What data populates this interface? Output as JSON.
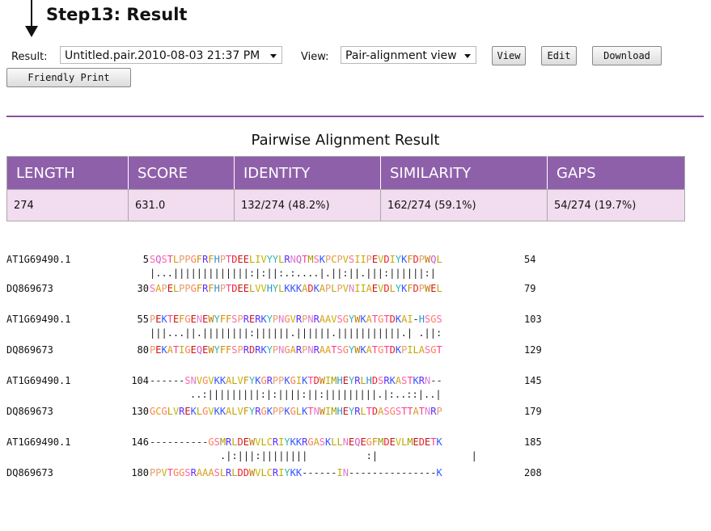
{
  "step": {
    "title": "Step13: Result"
  },
  "controls": {
    "result_label": "Result:",
    "result_value": "Untitled.pair.2010-08-03 21:37 PM",
    "view_label": "View:",
    "view_value": "Pair-alignment view",
    "view_button": "View",
    "edit_button": "Edit",
    "download_button": "Download",
    "print_button": "Friendly Print"
  },
  "summary": {
    "title": "Pairwise Alignment Result",
    "headers": [
      "LENGTH",
      "SCORE",
      "IDENTITY",
      "SIMILARITY",
      "GAPS"
    ],
    "values": [
      "274",
      "631.0",
      "132/274 (48.2%)",
      "162/274 (59.1%)",
      "54/274 (19.7%)"
    ],
    "header_color": "#8f60aa",
    "cell_color": "#f2dcef"
  },
  "alignment": {
    "blocks": [
      {
        "top": {
          "name": "AT1G69490.1",
          "start": "5",
          "seq": "SQSTLPPGFRFHPTDEELIVYYLRNQTMSKPCPVSIIPEVDIYKFDPWQL",
          "end": "54"
        },
        "match": "|...|||||||||||||:|:||:.:....|.||:||.|||:||||||:|",
        "bottom": {
          "name": "DQ869673",
          "start": "30",
          "seq": "SAPELPPGFRFHPTDEELVVHYLKKKADKAPLPVNIIAEVDLYKFDPWEL",
          "end": "79"
        }
      },
      {
        "top": {
          "name": "AT1G69490.1",
          "start": "55",
          "seq": "PEKTEFGENEWYFFSPRERKYPNGVRPNRAAVSGYWKATGTDKAI-HSGS",
          "end": "103"
        },
        "match": "|||...||.||||||||:||||||.||||||.|||||||||||.| .||:",
        "bottom": {
          "name": "DQ869673",
          "start": "80",
          "seq": "PEKATIGEQEWYFFSPRDRKYPNGARPNRAATSGYWKATGTDKPILASGT",
          "end": "129"
        }
      },
      {
        "top": {
          "name": "AT1G69490.1",
          "start": "104",
          "seq": "------SNVGVKKALVFYKGRPPKGIKTDWIMHEYRLHDSRKASTKRN--",
          "end": "145"
        },
        "match": "..:|||||||||:|:||||:||:|||||||||.|:..::|..|",
        "bottom": {
          "name": "DQ869673",
          "start": "130",
          "seq": "GCGLVREKLGVKKALVFYRGKPPKGLKTNWIMHEYRLTDASGSTTATNRP",
          "end": "179"
        }
      },
      {
        "top": {
          "name": "AT1G69490.1",
          "start": "146",
          "seq": "----------GSMRLDEWVLCRIYKKRGASKLLNEQEGFMDEVLMEDETK",
          "end": "185"
        },
        "match": ".|:|||:||||||||          :|                |",
        "bottom": {
          "name": "DQ869673",
          "start": "180",
          "seq": "PPVTGGSRAAASLRLDDWVLCRIYKK------IN---------------K",
          "end": "208"
        }
      }
    ]
  },
  "residue_colors": {
    "A": "#d4a017",
    "V": "#c0b400",
    "L": "#b8a800",
    "I": "#bfae00",
    "M": "#9b9b00",
    "F": "#cf8f00",
    "W": "#c07a00",
    "C": "#e0a000",
    "G": "#ff7f50",
    "P": "#e39b6a",
    "S": "#ff66a8",
    "T": "#ff3b8c",
    "N": "#e07ad0",
    "Q": "#cc55cc",
    "Y": "#33b3b3",
    "H": "#2d8fd0",
    "D": "#e8232b",
    "E": "#cc1010",
    "K": "#3355ff",
    "R": "#5a2dff",
    "-": "#333333"
  }
}
